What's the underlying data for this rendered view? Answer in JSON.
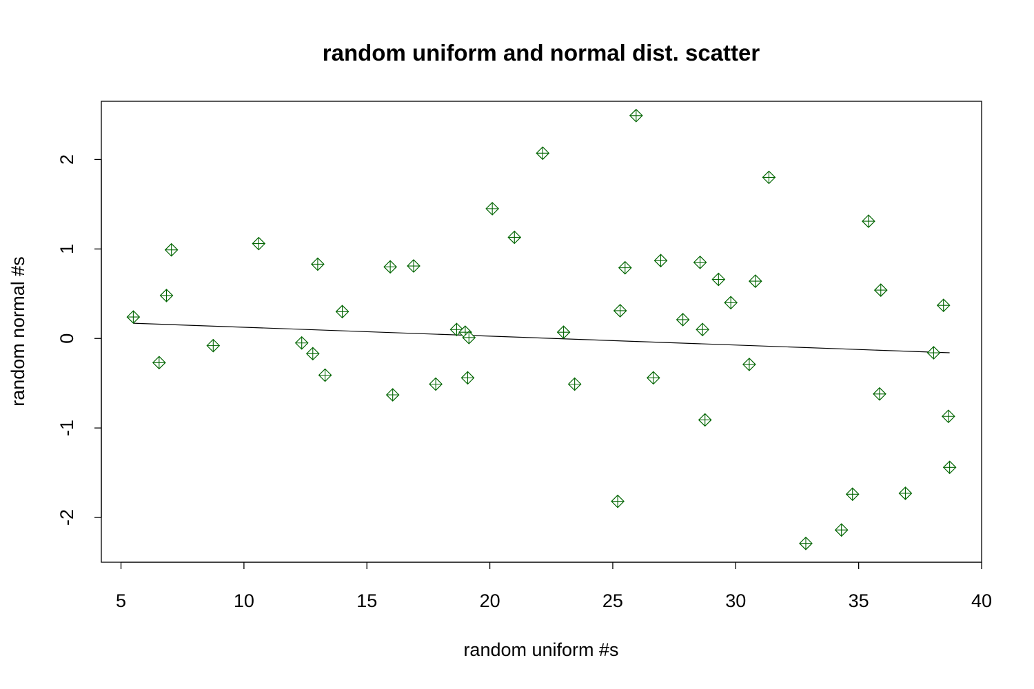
{
  "chart_data": {
    "type": "scatter",
    "title": "random uniform and normal dist. scatter",
    "xlabel": "random uniform #s",
    "ylabel": "random normal #s",
    "xlim": [
      4.2,
      40
    ],
    "ylim": [
      -2.5,
      2.65
    ],
    "x_ticks": [
      5,
      10,
      15,
      20,
      25,
      30,
      35,
      40
    ],
    "y_ticks": [
      -2,
      -1,
      0,
      1,
      2
    ],
    "grid": false,
    "legend": "none",
    "marker": "diamond-plus",
    "marker_color": "#006400",
    "marker_fill": "#ffffff",
    "points": [
      {
        "x": 5.5,
        "y": 0.24
      },
      {
        "x": 6.55,
        "y": -0.27
      },
      {
        "x": 6.85,
        "y": 0.48
      },
      {
        "x": 7.05,
        "y": 0.99
      },
      {
        "x": 8.75,
        "y": -0.08
      },
      {
        "x": 10.6,
        "y": 1.06
      },
      {
        "x": 12.35,
        "y": -0.05
      },
      {
        "x": 12.8,
        "y": -0.17
      },
      {
        "x": 13.0,
        "y": 0.83
      },
      {
        "x": 13.3,
        "y": -0.41
      },
      {
        "x": 14.0,
        "y": 0.3
      },
      {
        "x": 15.95,
        "y": 0.8
      },
      {
        "x": 16.05,
        "y": -0.63
      },
      {
        "x": 16.9,
        "y": 0.81
      },
      {
        "x": 17.8,
        "y": -0.51
      },
      {
        "x": 18.65,
        "y": 0.1
      },
      {
        "x": 19.0,
        "y": 0.07
      },
      {
        "x": 19.1,
        "y": -0.44
      },
      {
        "x": 19.15,
        "y": 0.01
      },
      {
        "x": 20.1,
        "y": 1.45
      },
      {
        "x": 21.0,
        "y": 1.13
      },
      {
        "x": 22.15,
        "y": 2.07
      },
      {
        "x": 23.0,
        "y": 0.07
      },
      {
        "x": 23.45,
        "y": -0.51
      },
      {
        "x": 25.2,
        "y": -1.82
      },
      {
        "x": 25.3,
        "y": 0.31
      },
      {
        "x": 25.5,
        "y": 0.79
      },
      {
        "x": 25.95,
        "y": 2.49
      },
      {
        "x": 26.65,
        "y": -0.44
      },
      {
        "x": 26.95,
        "y": 0.87
      },
      {
        "x": 27.85,
        "y": 0.21
      },
      {
        "x": 28.55,
        "y": 0.85
      },
      {
        "x": 28.65,
        "y": 0.1
      },
      {
        "x": 28.75,
        "y": -0.91
      },
      {
        "x": 29.3,
        "y": 0.66
      },
      {
        "x": 29.8,
        "y": 0.4
      },
      {
        "x": 30.55,
        "y": -0.29
      },
      {
        "x": 30.8,
        "y": 0.64
      },
      {
        "x": 31.35,
        "y": 1.8
      },
      {
        "x": 32.85,
        "y": -2.29
      },
      {
        "x": 34.3,
        "y": -2.14
      },
      {
        "x": 34.75,
        "y": -1.74
      },
      {
        "x": 35.4,
        "y": 1.31
      },
      {
        "x": 35.85,
        "y": -0.62
      },
      {
        "x": 35.9,
        "y": 0.54
      },
      {
        "x": 36.9,
        "y": -1.73
      },
      {
        "x": 38.05,
        "y": -0.16
      },
      {
        "x": 38.45,
        "y": 0.37
      },
      {
        "x": 38.65,
        "y": -0.87
      },
      {
        "x": 38.7,
        "y": -1.44
      }
    ],
    "regression_line": {
      "x": [
        5.5,
        38.7
      ],
      "y": [
        0.17,
        -0.16
      ]
    }
  }
}
